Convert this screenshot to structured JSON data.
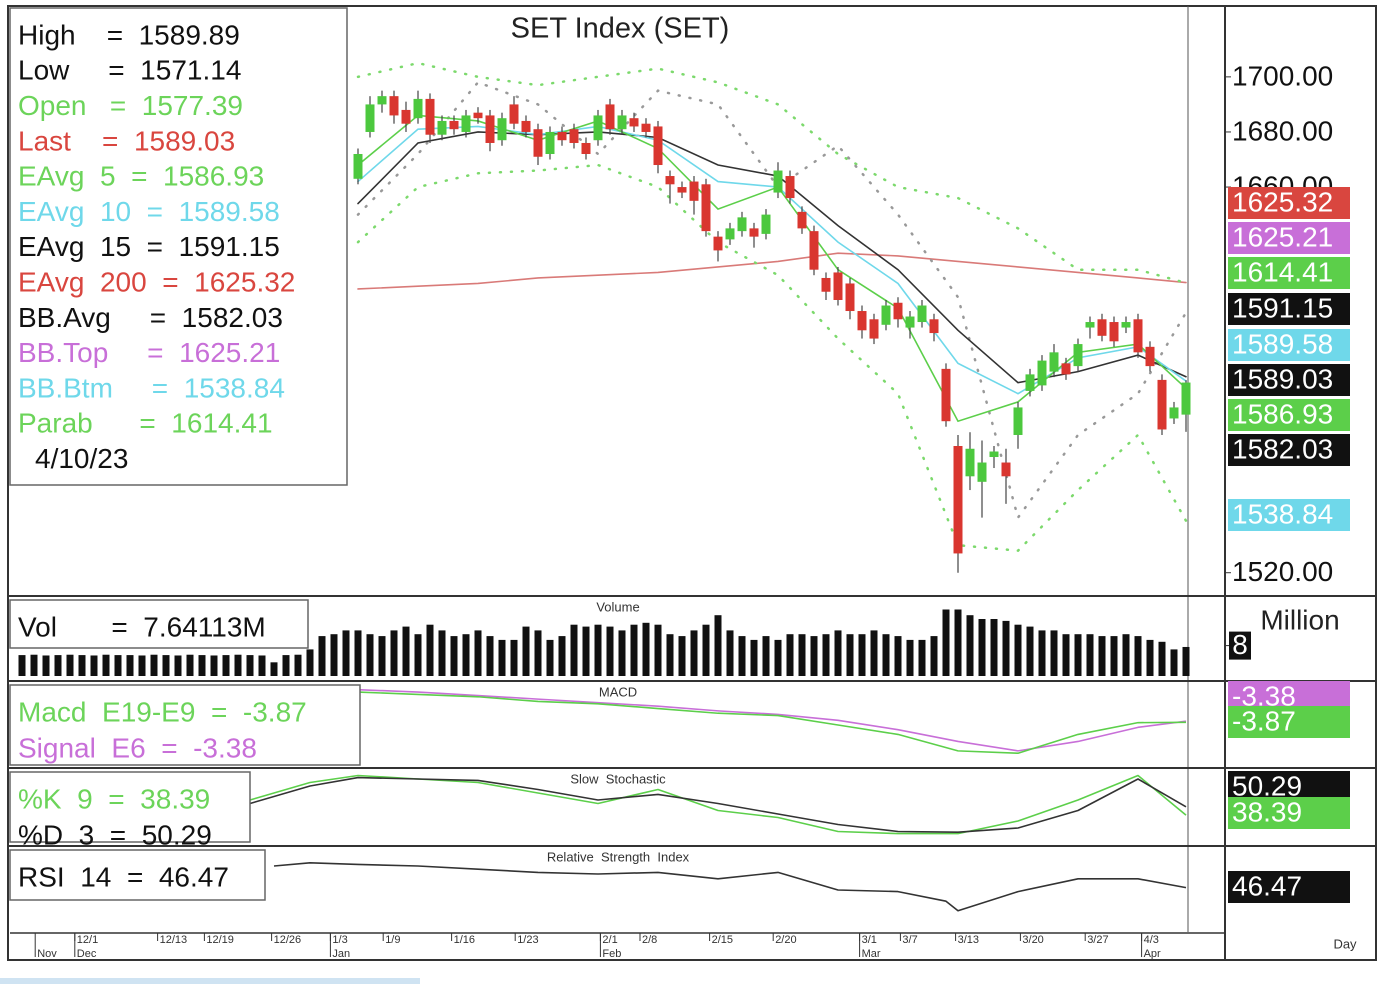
{
  "chart_data": [
    {
      "type": "candlestick",
      "title": "SET Index (SET)",
      "ylim": [
        1513,
        1725
      ],
      "yticks": [
        {
          "value": 1700,
          "label": "1700.00"
        },
        {
          "value": 1680,
          "label": "1680.00"
        },
        {
          "value": 1660,
          "label": "1660.00"
        },
        {
          "value": 1520,
          "label": "1520.00"
        }
      ],
      "up_color": "#4cc83e",
      "down_color": "#d9362f",
      "open": [
        1663,
        1680,
        1690,
        1693,
        1688,
        1685,
        1692,
        1679,
        1684,
        1680,
        1687,
        1686,
        1677,
        1690,
        1684,
        1681,
        1672,
        1680,
        1681,
        1676,
        1677,
        1690,
        1681,
        1685,
        1683,
        1682,
        1664,
        1660,
        1662,
        1661,
        1642,
        1641,
        1644,
        1645,
        1643,
        1658,
        1664,
        1651,
        1644,
        1627,
        1629,
        1625,
        1615,
        1612,
        1610,
        1618,
        1609,
        1611,
        1612,
        1594,
        1566,
        1555,
        1553,
        1562,
        1560,
        1570,
        1586,
        1588,
        1593,
        1596,
        1595,
        1609,
        1612,
        1611,
        1609,
        1612,
        1602,
        1590,
        1576,
        1577.39
      ],
      "high": [
        1674,
        1693,
        1695,
        1695,
        1691,
        1695,
        1694,
        1686,
        1686,
        1688,
        1689,
        1688,
        1687,
        1693,
        1686,
        1683,
        1682,
        1682,
        1683,
        1678,
        1688,
        1692,
        1688,
        1687,
        1685,
        1684,
        1666,
        1662,
        1664,
        1663,
        1644,
        1647,
        1651,
        1647,
        1652,
        1669,
        1666,
        1653,
        1646,
        1629,
        1631,
        1627,
        1617,
        1614,
        1619,
        1620,
        1615,
        1619,
        1614,
        1596,
        1570,
        1571,
        1568,
        1566,
        1565,
        1582,
        1594,
        1599,
        1603,
        1598,
        1605,
        1613,
        1614,
        1613,
        1613,
        1614,
        1604,
        1592,
        1582,
        1589.89
      ],
      "low": [
        1661,
        1678,
        1687,
        1683,
        1680,
        1683,
        1676,
        1677,
        1679,
        1678,
        1683,
        1673,
        1675,
        1681,
        1678,
        1668,
        1670,
        1675,
        1674,
        1670,
        1675,
        1679,
        1679,
        1680,
        1678,
        1665,
        1654,
        1656,
        1650,
        1642,
        1633,
        1639,
        1642,
        1638,
        1641,
        1656,
        1654,
        1643,
        1628,
        1619,
        1617,
        1612,
        1605,
        1603,
        1608,
        1609,
        1605,
        1609,
        1604,
        1573,
        1520,
        1550,
        1540,
        1558,
        1545,
        1565,
        1584,
        1586,
        1591,
        1590,
        1593,
        1605,
        1604,
        1602,
        1607,
        1598,
        1593,
        1570,
        1574,
        1571.14
      ],
      "close": [
        1672,
        1690,
        1693,
        1686,
        1683,
        1692,
        1679,
        1684,
        1681,
        1686,
        1685,
        1676,
        1685,
        1683,
        1680,
        1671,
        1680,
        1677,
        1676,
        1672,
        1686,
        1681,
        1686,
        1682,
        1680,
        1668,
        1661,
        1658,
        1655,
        1644,
        1637,
        1645,
        1649,
        1642,
        1650,
        1666,
        1656,
        1645,
        1630,
        1622,
        1619,
        1615,
        1608,
        1605,
        1617,
        1612,
        1613,
        1617,
        1607,
        1575,
        1527,
        1565,
        1560,
        1564,
        1555,
        1580,
        1592,
        1597,
        1600,
        1592,
        1603,
        1611,
        1606,
        1604,
        1611,
        1600,
        1595,
        1572,
        1580,
        1589.03
      ],
      "overlays": [
        {
          "color": "#d97a78",
          "style": "solid",
          "x": [
            0,
            5,
            10,
            15,
            20,
            25,
            30,
            35,
            40,
            45,
            50,
            55,
            60,
            65,
            69
          ],
          "values": [
            1623,
            1624,
            1625,
            1627,
            1628,
            1629,
            1631,
            1633,
            1636,
            1635,
            1633,
            1631,
            1629,
            1627,
            1625.32
          ]
        },
        {
          "color": "#7cd96c",
          "style": "dotted",
          "x": [
            0,
            5,
            10,
            15,
            20,
            25,
            30,
            35,
            40,
            45,
            50,
            55,
            60,
            65,
            69
          ],
          "values": [
            1700,
            1705,
            1700,
            1697,
            1700,
            1703,
            1698,
            1690,
            1672,
            1660,
            1656,
            1645,
            1630,
            1630,
            1625.21
          ]
        },
        {
          "color": "#7cd96c",
          "style": "dotted",
          "x": [
            0,
            5,
            10,
            15,
            20,
            25,
            30,
            35,
            40,
            45,
            50,
            55,
            60,
            65,
            69
          ],
          "values": [
            1640,
            1660,
            1665,
            1666,
            1668,
            1660,
            1640,
            1628,
            1605,
            1585,
            1530,
            1528,
            1550,
            1570,
            1538.84
          ]
        },
        {
          "color": "#999999",
          "style": "dotted",
          "x": [
            0,
            5,
            10,
            15,
            20,
            25,
            30,
            35,
            40,
            45,
            50,
            55,
            60,
            65,
            69
          ],
          "values": [
            1650,
            1672,
            1698,
            1690,
            1672,
            1695,
            1690,
            1660,
            1675,
            1650,
            1620,
            1540,
            1570,
            1585,
            1614.41
          ]
        },
        {
          "color": "#333333",
          "style": "solid",
          "x": [
            0,
            5,
            10,
            15,
            20,
            25,
            30,
            35,
            40,
            45,
            50,
            55,
            60,
            65,
            69
          ],
          "values": [
            1654,
            1676,
            1680,
            1679,
            1680,
            1678,
            1668,
            1664,
            1646,
            1630,
            1608,
            1589,
            1593,
            1599,
            1591.15
          ]
        },
        {
          "color": "#6fd8ea",
          "style": "solid",
          "x": [
            0,
            5,
            10,
            15,
            20,
            25,
            30,
            35,
            40,
            45,
            50,
            55,
            60,
            65,
            69
          ],
          "values": [
            1662,
            1681,
            1682,
            1679,
            1682,
            1677,
            1662,
            1660,
            1640,
            1625,
            1596,
            1585,
            1598,
            1602,
            1589.58
          ]
        },
        {
          "color": "#5ccf4a",
          "style": "solid",
          "x": [
            0,
            5,
            10,
            15,
            20,
            25,
            30,
            35,
            40,
            45,
            50,
            55,
            60,
            65,
            69
          ],
          "values": [
            1668,
            1686,
            1684,
            1677,
            1684,
            1674,
            1652,
            1660,
            1630,
            1616,
            1575,
            1582,
            1600,
            1603,
            1586.93
          ]
        }
      ],
      "info": [
        {
          "text": "High    =  1589.89",
          "color": "#111111"
        },
        {
          "text": "Low     =  1571.14",
          "color": "#111111"
        },
        {
          "text": "Open   =  1577.39",
          "color": "#6cd45a"
        },
        {
          "text": "Last    =  1589.03",
          "color": "#d9463f"
        },
        {
          "text": "EAvg  5  =  1586.93",
          "color": "#6cd45a"
        },
        {
          "text": "EAvg  10  =  1589.58",
          "color": "#6fd8ea"
        },
        {
          "text": "EAvg  15  =  1591.15",
          "color": "#111111"
        },
        {
          "text": "EAvg  200  =  1625.32",
          "color": "#d9463f"
        },
        {
          "text": "BB.Avg     =  1582.03",
          "color": "#111111"
        },
        {
          "text": "BB.Top     =  1625.21",
          "color": "#c86fd8"
        },
        {
          "text": "BB.Btm     =  1538.84",
          "color": "#6fd8ea"
        },
        {
          "text": "Parab      =  1614.41",
          "color": "#6cd45a"
        }
      ],
      "date": "4/10/23",
      "tags": [
        {
          "label": "1625.32",
          "bg": "#d9463f",
          "fg": "#ffffff"
        },
        {
          "label": "1625.21",
          "bg": "#c86fd8",
          "fg": "#ffffff"
        },
        {
          "label": "1614.41",
          "bg": "#5ccf4a",
          "fg": "#ffffff"
        },
        {
          "label": "1591.15",
          "bg": "#111111",
          "fg": "#ffffff"
        },
        {
          "label": "1589.58",
          "bg": "#6fd8ea",
          "fg": "#ffffff"
        },
        {
          "label": "1589.03",
          "bg": "#111111",
          "fg": "#ffffff"
        },
        {
          "label": "1586.93",
          "bg": "#5ccf4a",
          "fg": "#ffffff"
        },
        {
          "label": "1582.03",
          "bg": "#111111",
          "fg": "#ffffff"
        },
        {
          "label": "1538.84",
          "bg": "#6fd8ea",
          "fg": "#ffffff"
        }
      ]
    },
    {
      "type": "bar",
      "title": "Volume",
      "color": "#111111",
      "ylabel": "Million",
      "ylim": [
        0,
        20
      ],
      "yticks": [
        8
      ],
      "values": [
        5.5,
        5.6,
        5.4,
        5.5,
        5.6,
        5.5,
        5.4,
        5.6,
        5.5,
        5.5,
        5.4,
        5.6,
        5.5,
        5.4,
        5.6,
        5.5,
        5.4,
        5.5,
        5.6,
        5.5,
        5.4,
        3.6,
        5.5,
        5.6,
        7,
        10.5,
        11,
        12,
        12,
        11,
        10.5,
        12,
        13,
        11,
        13.5,
        12,
        10.5,
        11,
        12,
        10.5,
        9.5,
        9.5,
        13,
        12,
        9.5,
        10.5,
        13.5,
        13,
        13.5,
        13,
        12,
        13.5,
        14,
        13.5,
        11,
        10.5,
        12,
        13.5,
        16,
        12,
        10.5,
        9.5,
        10.5,
        9.5,
        11,
        11,
        10.5,
        11,
        12,
        11,
        11,
        12,
        11,
        10.5,
        9.5,
        9.5,
        10.5,
        17.5,
        17.5,
        16,
        15,
        15,
        14.5,
        13.5,
        13,
        12,
        12,
        11,
        11,
        11,
        10.5,
        10.5,
        11,
        10.5,
        9.5,
        9,
        7,
        7.64
      ],
      "info": [
        {
          "text": "Vol       =  7.64113M",
          "color": "#111111"
        }
      ],
      "tags": []
    },
    {
      "type": "line",
      "title": "MACD",
      "ylim": [
        -22,
        12
      ],
      "series": [
        {
          "color": "#c86fd8",
          "x": [
            0,
            5,
            10,
            15,
            20,
            25,
            30,
            35,
            40,
            45,
            50,
            55,
            60,
            65,
            69
          ],
          "values": [
            10,
            9,
            7.5,
            6,
            4.5,
            3,
            1,
            -0.5,
            -3,
            -7,
            -12,
            -16,
            -12,
            -6,
            -3.38
          ]
        },
        {
          "color": "#5ccf4a",
          "x": [
            0,
            5,
            10,
            15,
            20,
            25,
            30,
            35,
            40,
            45,
            50,
            55,
            60,
            65,
            69
          ],
          "values": [
            9,
            8,
            7,
            5,
            4,
            2,
            0,
            -1,
            -5,
            -9,
            -16,
            -17,
            -9,
            -4,
            -3.87
          ]
        }
      ],
      "info": [
        {
          "text": "Macd  E19-E9  =  -3.87",
          "color": "#6cd45a"
        },
        {
          "text": "Signal  E6  =  -3.38",
          "color": "#c86fd8"
        }
      ],
      "tags": [
        {
          "label": "-3.38",
          "bg": "#c86fd8",
          "fg": "#ffffff"
        },
        {
          "label": "-3.87",
          "bg": "#5ccf4a",
          "fg": "#ffffff"
        }
      ]
    },
    {
      "type": "line",
      "title": "Slow  Stochastic",
      "ylim": [
        0,
        100
      ],
      "series": [
        {
          "color": "#5ccf4a",
          "x": [
            -9,
            -4,
            0,
            5,
            10,
            15,
            20,
            25,
            30,
            35,
            40,
            45,
            50,
            55,
            60,
            65,
            69
          ],
          "values": [
            60,
            85,
            95,
            90,
            85,
            70,
            55,
            75,
            45,
            35,
            15,
            12,
            12,
            30,
            60,
            95,
            38.39
          ]
        },
        {
          "color": "#333333",
          "x": [
            -9,
            -4,
            0,
            5,
            10,
            15,
            20,
            25,
            30,
            35,
            40,
            45,
            50,
            55,
            60,
            65,
            69
          ],
          "values": [
            55,
            80,
            92,
            90,
            88,
            75,
            60,
            68,
            55,
            40,
            25,
            15,
            14,
            20,
            45,
            90,
            50.29
          ]
        }
      ],
      "info": [
        {
          "text": "%K  9  =  38.39",
          "color": "#6cd45a"
        },
        {
          "text": "%D  3  =  50.29",
          "color": "#111111"
        }
      ],
      "tags": [
        {
          "label": "50.29",
          "bg": "#111111",
          "fg": "#ffffff"
        },
        {
          "label": "38.39",
          "bg": "#5ccf4a",
          "fg": "#ffffff"
        }
      ]
    },
    {
      "type": "line",
      "title": "Relative  Strength  Index",
      "ylim": [
        20,
        70
      ],
      "series": [
        {
          "color": "#333333",
          "x": [
            -7,
            -4,
            0,
            5,
            10,
            15,
            20,
            25,
            30,
            35,
            40,
            45,
            49,
            50,
            55,
            60,
            65,
            69
          ],
          "values": [
            60,
            62,
            61,
            60,
            58,
            56,
            55,
            56,
            52,
            56,
            45,
            44,
            38,
            32,
            44,
            52,
            52,
            46.47
          ]
        }
      ],
      "info": [
        {
          "text": "RSI  14  =  46.47",
          "color": "#111111"
        }
      ],
      "tags": [
        {
          "label": "46.47",
          "bg": "#111111",
          "fg": "#ffffff"
        }
      ],
      "xticks": [
        {
          "value": -23.6,
          "label": "12/1"
        },
        {
          "value": -16.7,
          "label": "12/13"
        },
        {
          "value": -12.8,
          "label": "12/19"
        },
        {
          "value": -7.2,
          "label": "12/26"
        },
        {
          "value": -2.3,
          "label": "1/3"
        },
        {
          "value": 2.1,
          "label": "1/9"
        },
        {
          "value": 7.8,
          "label": "1/16"
        },
        {
          "value": 13.1,
          "label": "1/23"
        },
        {
          "value": 20.2,
          "label": "2/1"
        },
        {
          "value": 23.5,
          "label": "2/8"
        },
        {
          "value": 29.3,
          "label": "2/15"
        },
        {
          "value": 34.6,
          "label": "2/20"
        },
        {
          "value": 41.8,
          "label": "3/1"
        },
        {
          "value": 45.2,
          "label": "3/7"
        },
        {
          "value": 49.8,
          "label": "3/13"
        },
        {
          "value": 55.2,
          "label": "3/20"
        },
        {
          "value": 60.6,
          "label": "3/27"
        },
        {
          "value": 65.3,
          "label": "4/3"
        }
      ],
      "month_ticks": [
        {
          "value": -26.9,
          "label": "Nov"
        },
        {
          "value": -23.6,
          "label": "Dec"
        },
        {
          "value": -2.3,
          "label": "Jan"
        },
        {
          "value": 20.2,
          "label": "Feb"
        },
        {
          "value": 41.8,
          "label": "Mar"
        },
        {
          "value": 65.3,
          "label": "Apr"
        }
      ],
      "xlabel": "Day"
    }
  ]
}
